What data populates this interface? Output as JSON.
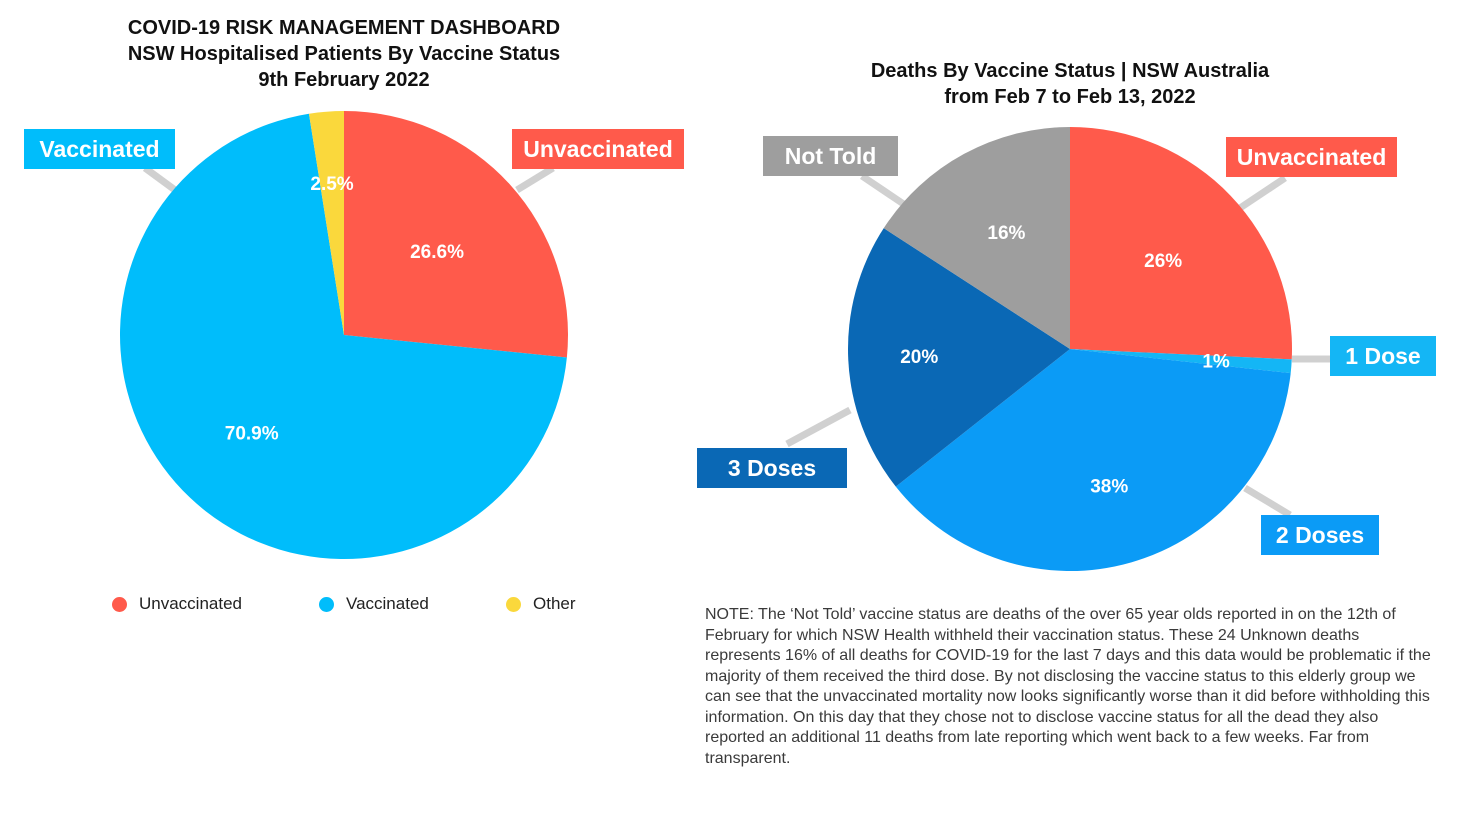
{
  "chart_data": [
    {
      "type": "pie",
      "title": "COVID-19 RISK MANAGEMENT DASHBOARD",
      "subtitle_lines": [
        "NSW Hospitalised Patients By Vaccine Status",
        "9th February 2022"
      ],
      "categories": [
        "Unvaccinated",
        "Vaccinated",
        "Other"
      ],
      "values": [
        26.6,
        70.9,
        2.5
      ],
      "value_labels": [
        "26.6%",
        "70.9%",
        "2.5%"
      ],
      "colors": [
        "#ff5a4b",
        "#00bdfb",
        "#fad83c"
      ],
      "callouts": [
        "Unvaccinated",
        "Vaccinated"
      ],
      "legend": {
        "placement": "bottom",
        "items": [
          {
            "label": "Unvaccinated",
            "color": "#ff5a4b"
          },
          {
            "label": "Vaccinated",
            "color": "#00bdfb"
          },
          {
            "label": "Other",
            "color": "#fad83c"
          }
        ]
      }
    },
    {
      "type": "pie",
      "title_lines": [
        "Deaths By Vaccine Status | NSW Australia",
        "from Feb 7 to Feb 13, 2022"
      ],
      "categories": [
        "Unvaccinated",
        "1 Dose",
        "2 Doses",
        "3 Doses",
        "Not Told"
      ],
      "values": [
        26,
        1,
        38,
        20,
        16
      ],
      "value_labels": [
        "26%",
        "1%",
        "38%",
        "20%",
        "16%"
      ],
      "colors": [
        "#ff5a4b",
        "#14b6f5",
        "#0b9bf6",
        "#0a68b5",
        "#9e9e9e"
      ],
      "callouts": [
        "Unvaccinated",
        "1 Dose",
        "2 Doses",
        "3 Doses",
        "Not Told"
      ]
    }
  ],
  "note": "NOTE: The ‘Not Told’ vaccine status are deaths of the over 65 year olds reported in on the 12th of February for which NSW Health withheld their vaccination status. These 24 Unknown deaths represents 16% of all deaths for COVID-19 for the last 7 days and this data would be problematic if the majority of them received the third dose. By not disclosing the vaccine status to this elderly group we can see that the unvaccinated mortality now looks significantly worse than it did before withholding this information. On this day that they chose not to disclose vaccine status for all the dead they also reported an additional 11 deaths from late reporting which went back to a few weeks. Far from transparent."
}
